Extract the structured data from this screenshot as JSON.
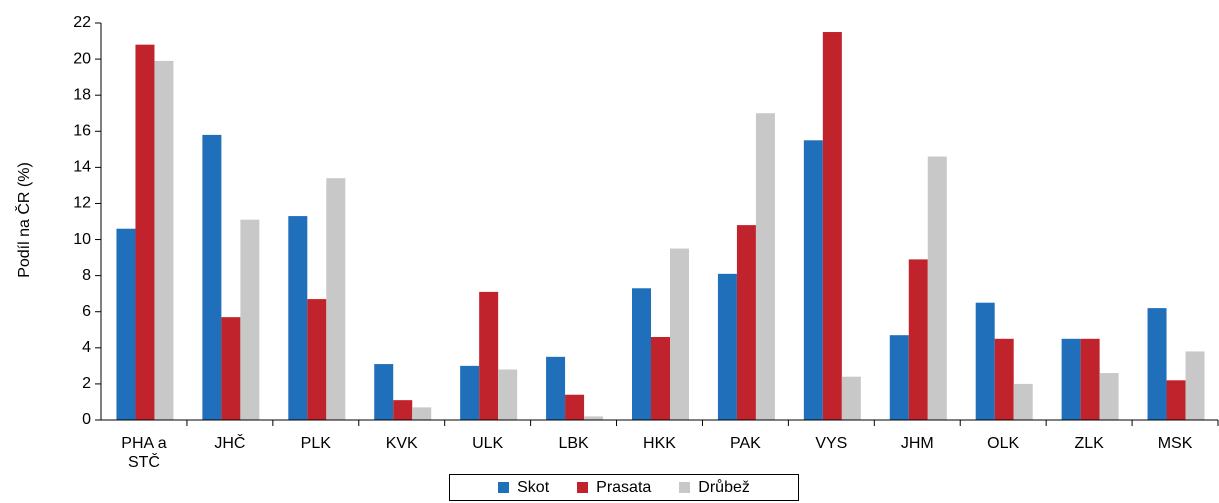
{
  "chart_data": {
    "type": "bar",
    "y_label": "Podíl na ČR (%)",
    "categories": [
      "PHA a STČ",
      "JHČ",
      "PLK",
      "KVK",
      "ULK",
      "LBK",
      "HKK",
      "PAK",
      "VYS",
      "JHM",
      "OLK",
      "ZLK",
      "MSK"
    ],
    "series": [
      {
        "name": "Skot",
        "color": "#1f6fba",
        "values": [
          10.6,
          15.8,
          11.3,
          3.1,
          3.0,
          3.5,
          7.3,
          8.1,
          15.5,
          4.7,
          6.5,
          4.5,
          6.2
        ]
      },
      {
        "name": "Prasata",
        "color": "#c0232b",
        "values": [
          20.8,
          5.7,
          6.7,
          1.1,
          7.1,
          1.4,
          4.6,
          10.8,
          21.5,
          8.9,
          4.5,
          4.5,
          2.2
        ]
      },
      {
        "name": "Drůbež",
        "color": "#c8c8c8",
        "values": [
          19.9,
          11.1,
          13.4,
          0.7,
          2.8,
          0.2,
          9.5,
          17.0,
          2.4,
          14.6,
          2.0,
          2.6,
          3.8
        ]
      }
    ],
    "ylim": [
      0,
      22
    ],
    "yticks": [
      0,
      2,
      4,
      6,
      8,
      10,
      12,
      14,
      16,
      18,
      20,
      22
    ],
    "legend": "bottom"
  }
}
